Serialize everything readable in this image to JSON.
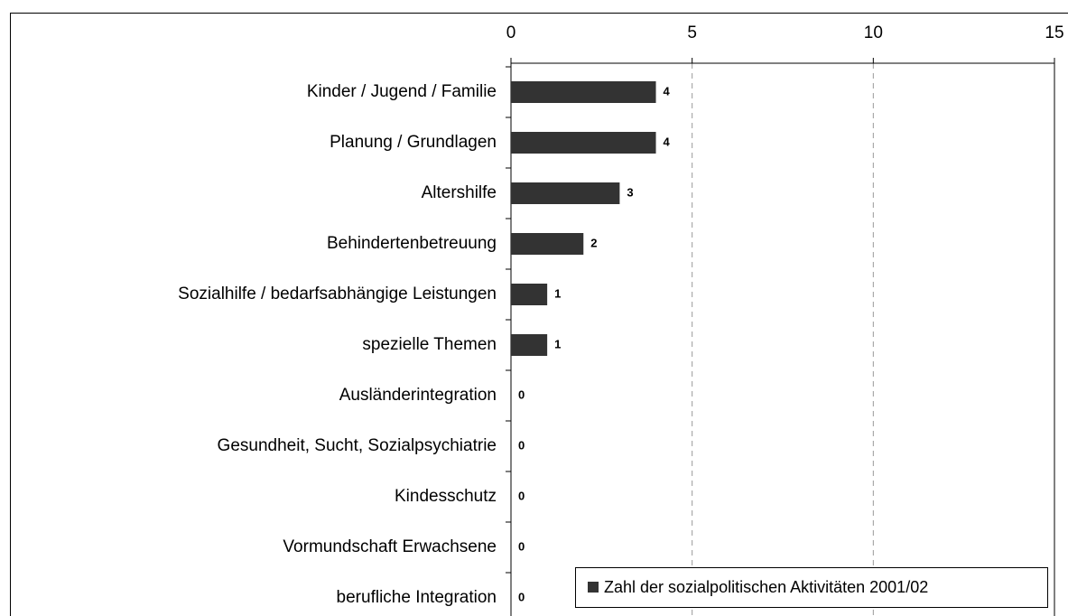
{
  "chart_data": {
    "type": "bar",
    "orientation": "horizontal",
    "categories": [
      "Kinder / Jugend / Familie",
      "Planung / Grundlagen",
      "Altershilfe",
      "Behindertenbetreuung",
      "Sozialhilfe / bedarfsabhängige Leistungen",
      "spezielle Themen",
      "Ausländerintegration",
      "Gesundheit, Sucht, Sozialpsychiatrie",
      "Kindesschutz",
      "Vormundschaft Erwachsene",
      "berufliche Integration"
    ],
    "series": [
      {
        "name": "Zahl der sozialpolitischen Aktivitäten 2001/02",
        "color": "#333333",
        "values": [
          4,
          4,
          3,
          2,
          1,
          1,
          0,
          0,
          0,
          0,
          0
        ]
      }
    ],
    "xlim": [
      0,
      15
    ],
    "xticks": [
      0,
      5,
      10,
      15
    ],
    "grid": true,
    "legend": "bottom-right"
  }
}
